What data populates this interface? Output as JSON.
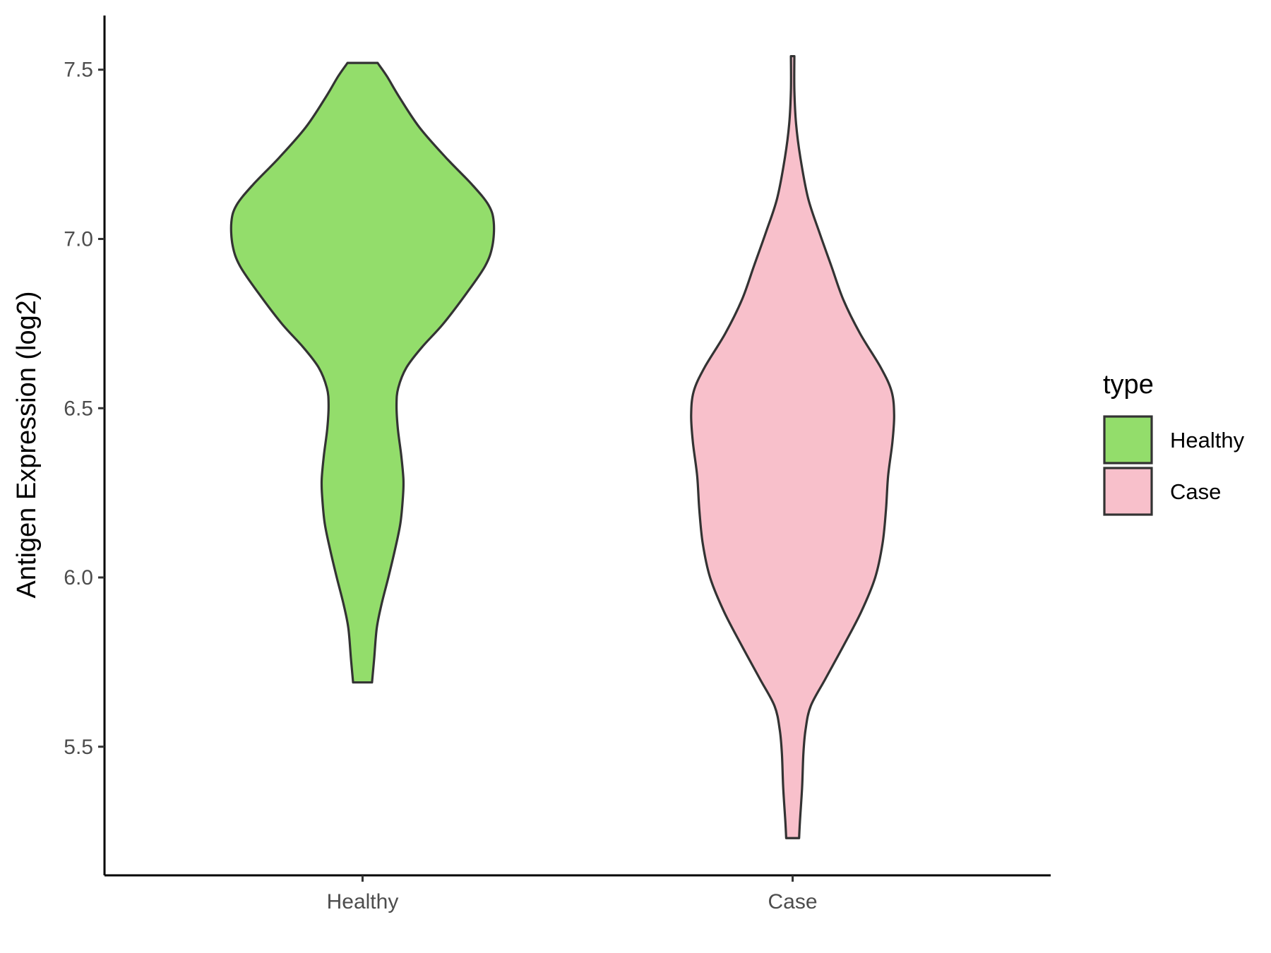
{
  "chart_data": {
    "type": "violin",
    "ylabel": "Antigen Expression (log2)",
    "xlabel": "",
    "ylim": [
      5.12,
      7.66
    ],
    "yticks": [
      5.5,
      6.0,
      6.5,
      7.0,
      7.5
    ],
    "ytick_labels": [
      "5.5",
      "6.0",
      "6.5",
      "7.0",
      "7.5"
    ],
    "categories": [
      "Healthy",
      "Case"
    ],
    "legend": {
      "title": "type",
      "position": "right",
      "entries": [
        "Healthy",
        "Case"
      ]
    },
    "grid": false,
    "max_halfwidth": 0.3,
    "series": [
      {
        "name": "Healthy",
        "color": "#93dd6b",
        "profile": [
          [
            5.69,
            0.022
          ],
          [
            5.76,
            0.027
          ],
          [
            5.85,
            0.033
          ],
          [
            5.92,
            0.044
          ],
          [
            6.0,
            0.06
          ],
          [
            6.08,
            0.075
          ],
          [
            6.16,
            0.088
          ],
          [
            6.24,
            0.094
          ],
          [
            6.29,
            0.095
          ],
          [
            6.36,
            0.09
          ],
          [
            6.44,
            0.082
          ],
          [
            6.51,
            0.079
          ],
          [
            6.56,
            0.083
          ],
          [
            6.62,
            0.102
          ],
          [
            6.68,
            0.138
          ],
          [
            6.75,
            0.188
          ],
          [
            6.84,
            0.242
          ],
          [
            6.92,
            0.285
          ],
          [
            6.98,
            0.302
          ],
          [
            7.05,
            0.305
          ],
          [
            7.1,
            0.293
          ],
          [
            7.16,
            0.255
          ],
          [
            7.24,
            0.194
          ],
          [
            7.33,
            0.132
          ],
          [
            7.42,
            0.085
          ],
          [
            7.48,
            0.057
          ],
          [
            7.52,
            0.035
          ]
        ]
      },
      {
        "name": "Case",
        "color": "#f8c0cb",
        "profile": [
          [
            5.23,
            0.015
          ],
          [
            5.28,
            0.017
          ],
          [
            5.38,
            0.022
          ],
          [
            5.48,
            0.025
          ],
          [
            5.55,
            0.03
          ],
          [
            5.62,
            0.042
          ],
          [
            5.7,
            0.076
          ],
          [
            5.8,
            0.119
          ],
          [
            5.9,
            0.16
          ],
          [
            6.0,
            0.192
          ],
          [
            6.1,
            0.209
          ],
          [
            6.2,
            0.217
          ],
          [
            6.3,
            0.222
          ],
          [
            6.4,
            0.232
          ],
          [
            6.48,
            0.236
          ],
          [
            6.55,
            0.23
          ],
          [
            6.62,
            0.205
          ],
          [
            6.72,
            0.157
          ],
          [
            6.82,
            0.118
          ],
          [
            6.92,
            0.09
          ],
          [
            7.02,
            0.062
          ],
          [
            7.12,
            0.036
          ],
          [
            7.24,
            0.018
          ],
          [
            7.34,
            0.008
          ],
          [
            7.44,
            0.004
          ],
          [
            7.54,
            0.004
          ]
        ]
      }
    ]
  }
}
